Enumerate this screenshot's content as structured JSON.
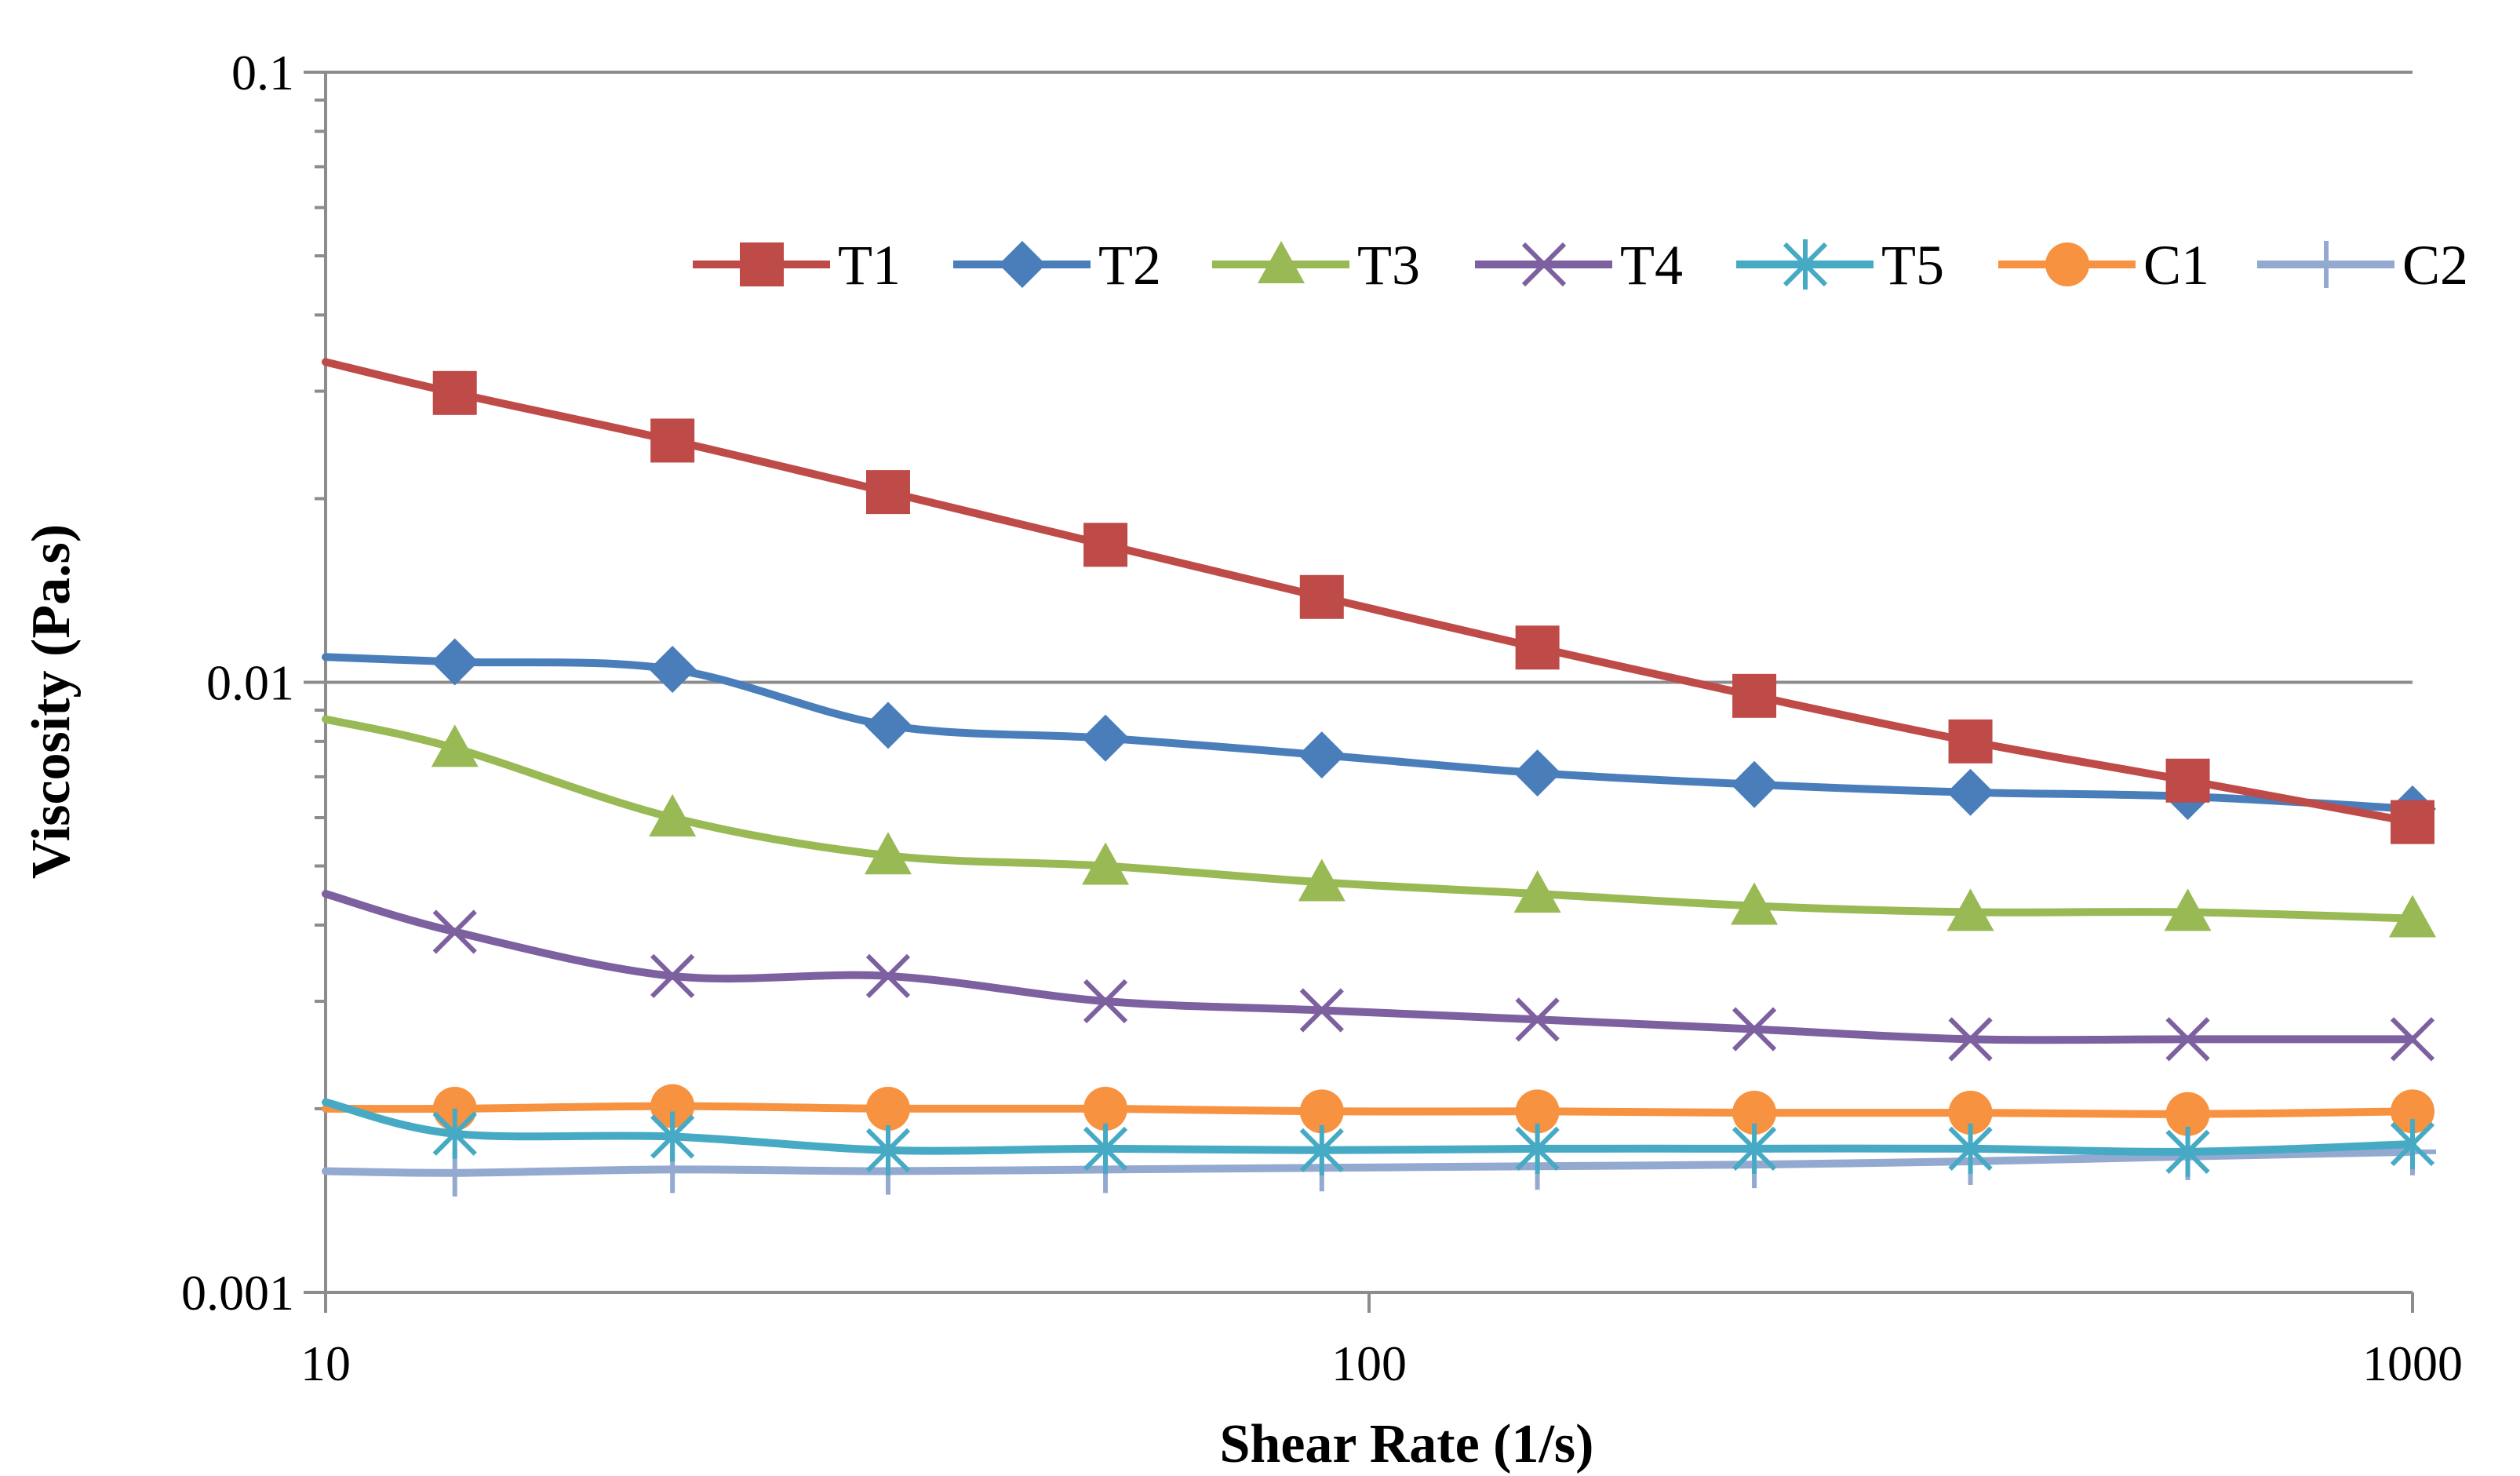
{
  "chart_data": {
    "type": "line",
    "title": "",
    "xlabel": "Shear Rate (1/s)",
    "ylabel": "Viscosity (Pa.s)",
    "xscale": "log",
    "yscale": "log",
    "xlim": [
      10,
      1000
    ],
    "ylim": [
      0.001,
      0.1
    ],
    "x_ticks": [
      10,
      100,
      1000
    ],
    "x_tick_labels": [
      "10",
      "100",
      "1000"
    ],
    "y_ticks": [
      0.001,
      0.01,
      0.1
    ],
    "y_tick_labels": [
      "0.001",
      "0.01",
      "0.1"
    ],
    "grid": "horizontal major",
    "legend_position": "top",
    "x_start": 10,
    "x": [
      13.3,
      21.5,
      34.6,
      55.9,
      90.1,
      145,
      234,
      377,
      609,
      1000
    ],
    "series": [
      {
        "name": "T1",
        "color": "#BE4B48",
        "marker": "square",
        "start": 0.0335,
        "values": [
          0.0298,
          0.0249,
          0.0205,
          0.0168,
          0.0138,
          0.0114,
          0.0095,
          0.008,
          0.0069,
          0.0059
        ]
      },
      {
        "name": "T2",
        "color": "#4A7EBB",
        "marker": "diamond",
        "start": 0.011,
        "values": [
          0.0108,
          0.0105,
          0.0085,
          0.0081,
          0.0076,
          0.0071,
          0.0068,
          0.0066,
          0.0065,
          0.0062
        ]
      },
      {
        "name": "T3",
        "color": "#98B954",
        "marker": "triangle",
        "start": 0.0087,
        "values": [
          0.0078,
          0.006,
          0.0052,
          0.005,
          0.0047,
          0.0045,
          0.0043,
          0.0042,
          0.0042,
          0.0041
        ]
      },
      {
        "name": "T4",
        "color": "#7D60A0",
        "marker": "x",
        "start": 0.0045,
        "values": [
          0.0039,
          0.0033,
          0.0033,
          0.003,
          0.0029,
          0.0028,
          0.0027,
          0.0026,
          0.0026,
          0.0026
        ]
      },
      {
        "name": "T5",
        "color": "#46AAC5",
        "marker": "asterisk",
        "start": 0.00205,
        "values": [
          0.00182,
          0.0018,
          0.00171,
          0.00172,
          0.00171,
          0.00172,
          0.00172,
          0.00172,
          0.0017,
          0.00175
        ]
      },
      {
        "name": "C1",
        "color": "#F69240",
        "marker": "circle",
        "start": 0.002,
        "values": [
          0.002,
          0.00202,
          0.002,
          0.002,
          0.00198,
          0.00198,
          0.00197,
          0.00197,
          0.00196,
          0.00198
        ]
      },
      {
        "name": "C2",
        "color": "#93A9D0",
        "marker": "plus",
        "start": 0.00158,
        "values": [
          0.00157,
          0.00159,
          0.00158,
          0.00159,
          0.0016,
          0.00161,
          0.00162,
          0.00164,
          0.00167,
          0.0017
        ]
      }
    ]
  }
}
